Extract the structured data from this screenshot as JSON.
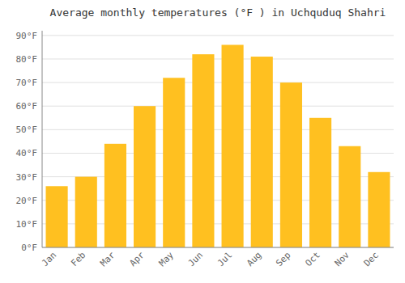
{
  "chart_data": {
    "type": "bar",
    "title": "Average monthly temperatures (°F ) in Uchquduq Shahri",
    "categories": [
      "Jan",
      "Feb",
      "Mar",
      "Apr",
      "May",
      "Jun",
      "Jul",
      "Aug",
      "Sep",
      "Oct",
      "Nov",
      "Dec"
    ],
    "values": [
      26,
      30,
      44,
      60,
      72,
      82,
      86,
      81,
      70,
      55,
      43,
      32
    ],
    "color": "#FFC020",
    "ylim": [
      0,
      92
    ],
    "yticks": [
      {
        "value": 0,
        "label": "0°F"
      },
      {
        "value": 10,
        "label": "10°F"
      },
      {
        "value": 20,
        "label": "20°F"
      },
      {
        "value": 30,
        "label": "30°F"
      },
      {
        "value": 40,
        "label": "40°F"
      },
      {
        "value": 50,
        "label": "50°F"
      },
      {
        "value": 60,
        "label": "60°F"
      },
      {
        "value": 70,
        "label": "70°F"
      },
      {
        "value": 80,
        "label": "80°F"
      },
      {
        "value": 90,
        "label": "90°F"
      }
    ],
    "grid": true
  }
}
